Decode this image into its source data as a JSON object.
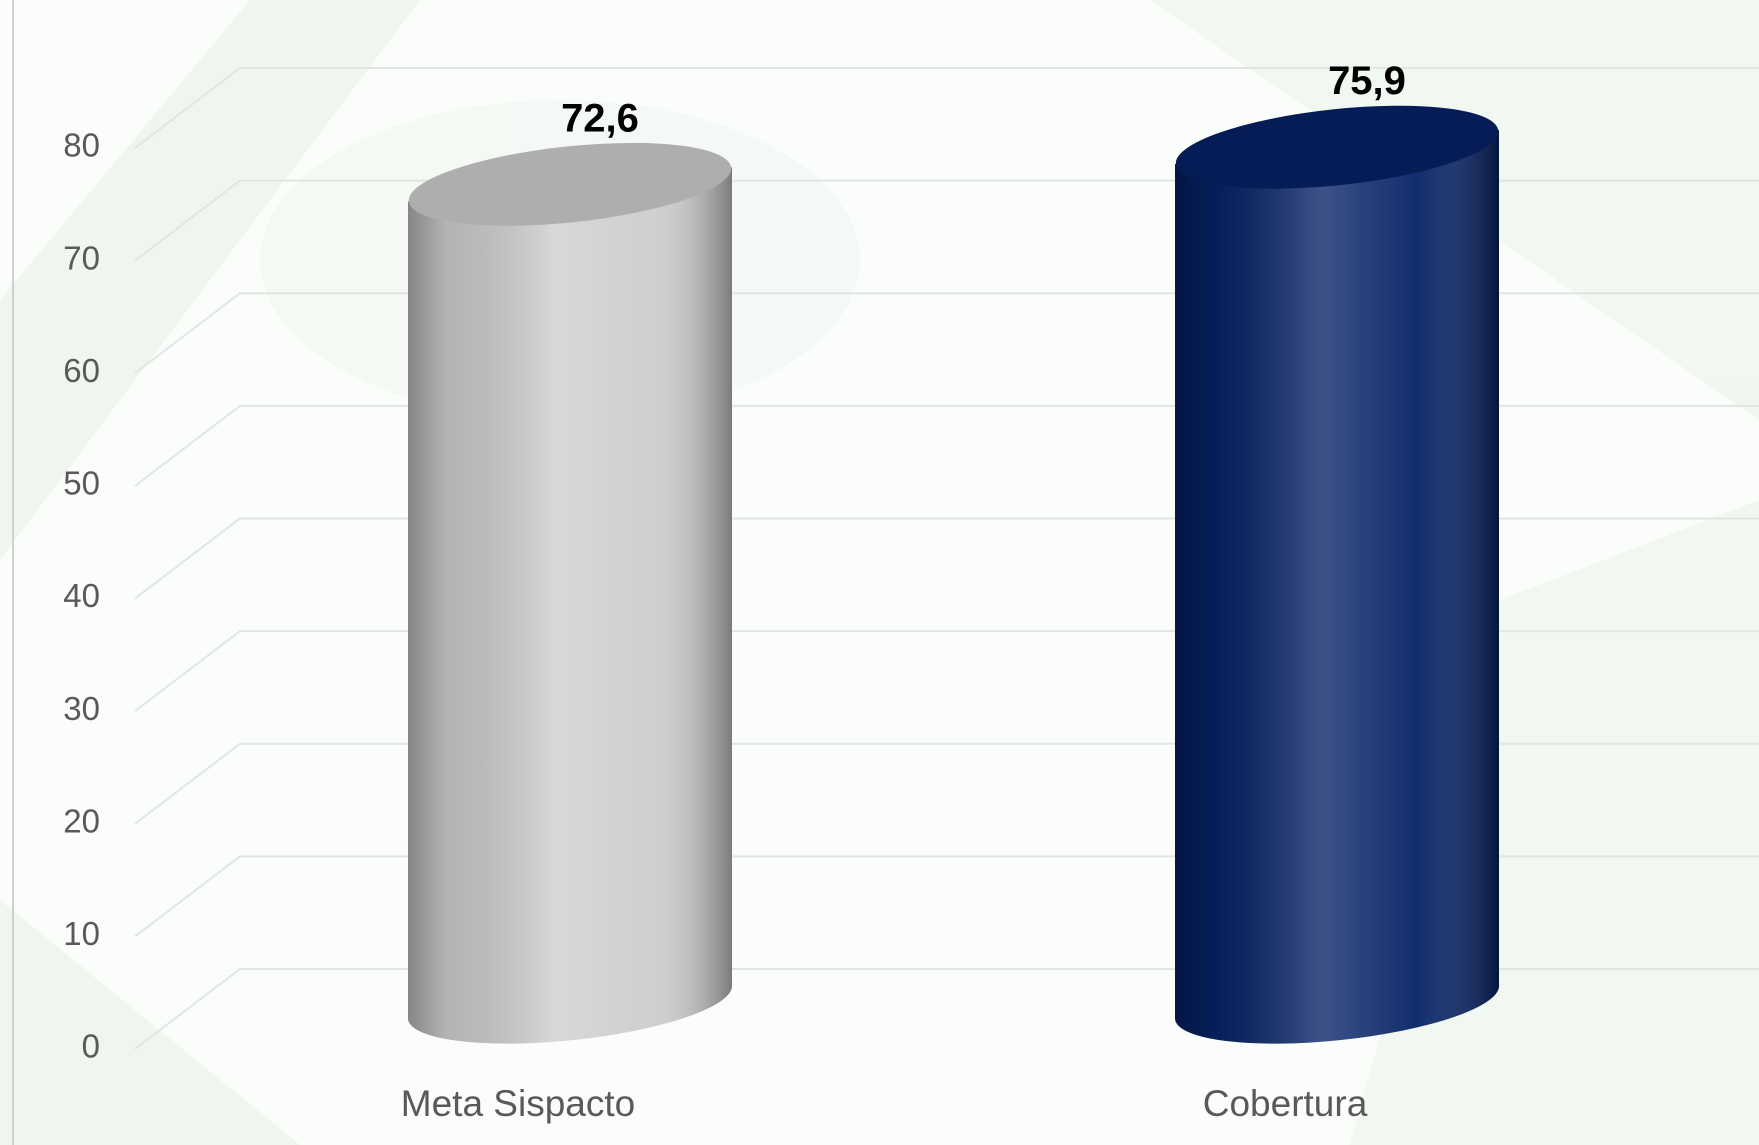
{
  "chart_data": {
    "type": "cylinder",
    "categories": [
      "Meta Sispacto",
      "Cobertura"
    ],
    "values": [
      72.6,
      75.9
    ],
    "value_labels": [
      "72,6",
      "75,9"
    ],
    "colors": [
      "#cdcdcd",
      "#062266"
    ],
    "ylim": [
      0,
      80
    ],
    "yticks": [
      0,
      10,
      20,
      30,
      40,
      50,
      60,
      70,
      80
    ],
    "grid": true
  }
}
